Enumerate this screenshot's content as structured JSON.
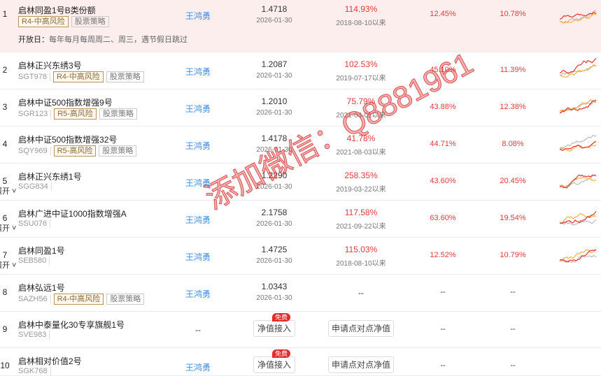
{
  "watermark": "添加微信：Q8881961",
  "expand_label": "展开",
  "open_day": {
    "label": "开放日：",
    "text": "每年每月每周周二、周三，遇节假日跳过"
  },
  "colors": {
    "accent_red": "#e23a3a",
    "link_blue": "#3a8ee6",
    "spark_red": "#e8322a",
    "spark_orange": "#f5b04a",
    "spark_gray": "#bbbbbb"
  },
  "rows": [
    {
      "rank": "1",
      "name": "启林同盈1号B类份额",
      "code": "",
      "tags": [
        "R4-中高风险",
        "股票策略"
      ],
      "manager": "王鸿勇",
      "nav": "1.4718",
      "nav_date": "2026-01-30",
      "ret": "114.93%",
      "since": "2018-08-10以来",
      "c5": "12.45%",
      "c6": "10.78%"
    },
    {
      "rank": "2",
      "name": "启林正兴东绣3号",
      "code": "SGT978",
      "tags": [
        "R4-中高风险",
        "股票策略"
      ],
      "manager": "王鸿勇",
      "nav": "1.2087",
      "nav_date": "2026-01-30",
      "ret": "102.53%",
      "since": "2019-07-17以来",
      "c5": "45.10%",
      "c6": "11.39%"
    },
    {
      "rank": "3",
      "name": "启林中证500指数增强9号",
      "code": "SGR123",
      "tags": [
        "R5-高风险",
        "股票策略"
      ],
      "manager": "王鸿勇",
      "nav": "1.2010",
      "nav_date": "2026-01-30",
      "ret": "75.79%",
      "since": "2021-04-01以来",
      "c5": "43.88%",
      "c6": "12.38%"
    },
    {
      "rank": "4",
      "name": "启林中证500指数增强32号",
      "code": "SQY969",
      "tags": [
        "R5-高风险",
        "股票策略"
      ],
      "manager": "王鸿勇",
      "nav": "1.4178",
      "nav_date": "2026-01-30",
      "ret": "41.78%",
      "since": "2021-08-03以来",
      "c5": "44.71%",
      "c6": "8.08%"
    },
    {
      "rank": "5",
      "name": "启林正兴东绣1号",
      "code": "SGG834",
      "tags": [],
      "expand": true,
      "manager": "王鸿勇",
      "nav": "1.2290",
      "nav_date": "2026-01-30",
      "ret": "258.35%",
      "since": "2019-03-22以来",
      "c5": "43.60%",
      "c6": "20.45%"
    },
    {
      "rank": "6",
      "name": "启林广进中证1000指数增强A",
      "code": "SSU076",
      "tags": [],
      "expand": true,
      "manager": "王鸿勇",
      "nav": "2.1758",
      "nav_date": "2026-01-30",
      "ret": "117.58%",
      "since": "2021-09-22以来",
      "c5": "63.60%",
      "c6": "19.54%"
    },
    {
      "rank": "7",
      "name": "启林同盈1号",
      "code": "SEB580",
      "tags": [],
      "expand": true,
      "manager": "王鸿勇",
      "nav": "1.4725",
      "nav_date": "2026-01-30",
      "ret": "115.03%",
      "since": "2018-08-10以来",
      "c5": "12.52%",
      "c6": "10.79%"
    },
    {
      "rank": "8",
      "name": "启林弘远1号",
      "code": "SAZH56",
      "tags": [
        "R4-中高风险",
        "股票策略"
      ],
      "manager": "王鸿勇",
      "nav": "1.0343",
      "nav_date": "2026-01-30",
      "ret": "--",
      "since": "",
      "c5": "--",
      "c6": "--"
    },
    {
      "rank": "9",
      "name": "启林中泰量化30专享旗舰1号",
      "code": "SVE983",
      "tags": [],
      "manager": "--",
      "nav_button": "净值接入",
      "free_badge": "免费",
      "p2p_button": "申请点对点净值",
      "c5": "--",
      "c6": "--"
    },
    {
      "rank": "10",
      "name": "启林相对价值2号",
      "code": "SGK768",
      "tags": [],
      "manager": "王鸿勇",
      "nav_button": "净值接入",
      "free_badge": "免费",
      "p2p_button": "申请点对点净值",
      "c5": "--",
      "c6": "--"
    }
  ]
}
